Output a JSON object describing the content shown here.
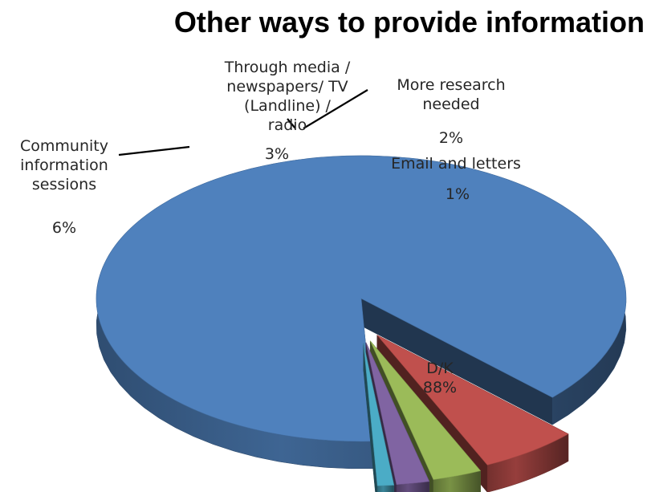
{
  "chart_data": {
    "type": "pie",
    "title": "Other ways to provide information",
    "slices": [
      {
        "category": "D/K",
        "value": 88,
        "percent_label": "88%",
        "color": "#4F81BD",
        "label_lines": [
          "D/K"
        ]
      },
      {
        "category": "Community information sessions",
        "value": 6,
        "percent_label": "6%",
        "color": "#C0504D",
        "label_lines": [
          "Community",
          "information",
          "sessions"
        ]
      },
      {
        "category": "Through media / newspapers/ TV (Landline) / radio",
        "value": 3,
        "percent_label": "3%",
        "color": "#9BBB59",
        "label_lines": [
          "Through media /",
          "newspapers/ TV",
          "(Landline) /",
          "radio"
        ]
      },
      {
        "category": "More research needed",
        "value": 2,
        "percent_label": "2%",
        "color": "#8064A2",
        "label_lines": [
          "More research",
          "needed"
        ]
      },
      {
        "category": "Email and letters",
        "value": 1,
        "percent_label": "1%",
        "color": "#4BACC6",
        "label_lines": [
          "Email and letters"
        ]
      }
    ]
  }
}
